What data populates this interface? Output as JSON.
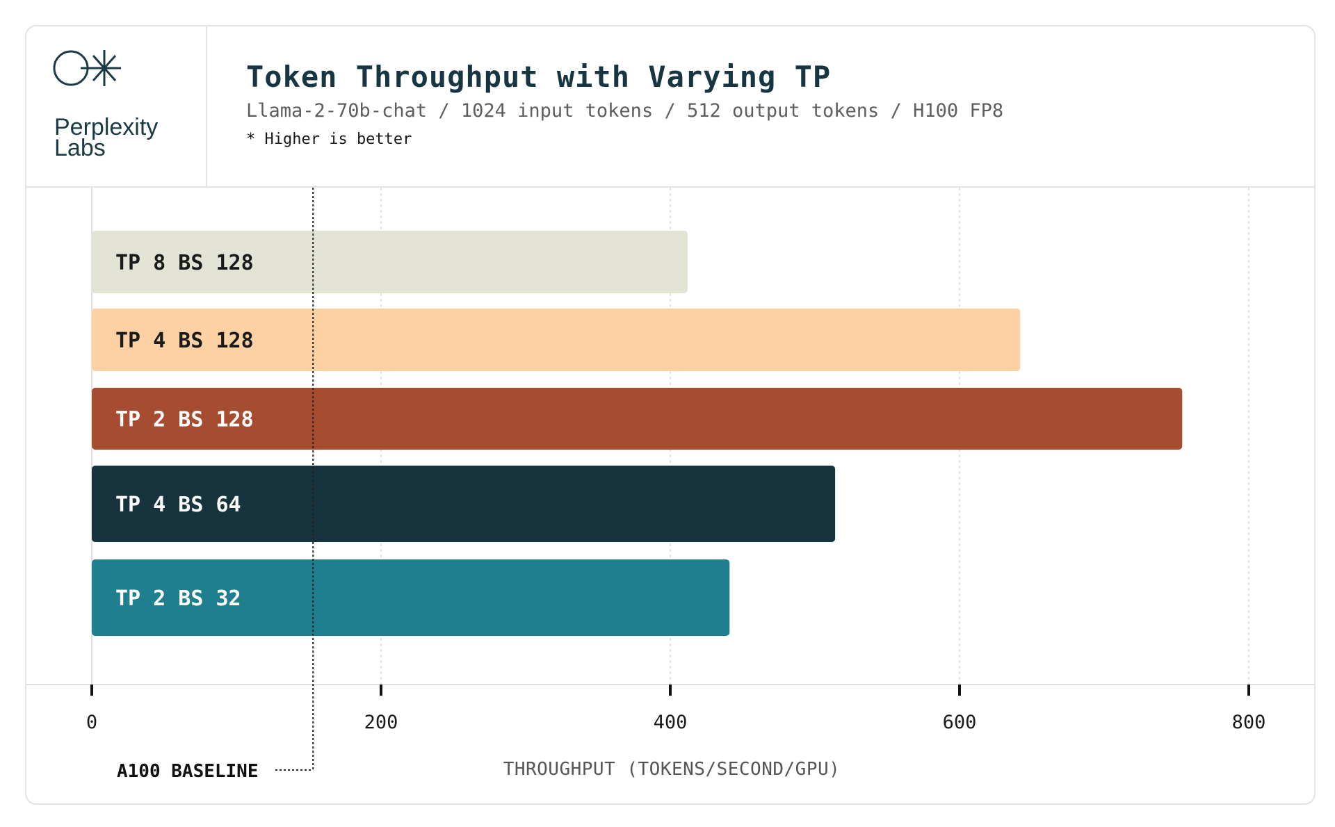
{
  "brand": {
    "logo_icon": "perplexity-logo-icon",
    "name": "Perplexity\nLabs"
  },
  "header": {
    "title": "Token Throughput with Varying TP",
    "subtitle": "Llama-2-70b-chat / 1024 input tokens / 512 output tokens / H100 FP8",
    "note": "* Higher is better"
  },
  "chart_data": {
    "type": "bar",
    "orientation": "horizontal",
    "categories": [
      "TP 8 BS 128",
      "TP 4 BS 128",
      "TP 2 BS 128",
      "TP 4 BS 64",
      "TP 2 BS 32"
    ],
    "values": [
      412,
      642,
      754,
      514,
      441
    ],
    "colors": [
      "#e4e4d6",
      "#fed1a5",
      "#a64d31",
      "#17333e",
      "#1f7f8f"
    ],
    "label_colors": [
      "#1a1a1a",
      "#1a1a1a",
      "#ffffff",
      "#ffffff",
      "#ffffff"
    ],
    "title": "Token Throughput with Varying TP",
    "xlabel": "THROUGHPUT (TOKENS/SECOND/GPU)",
    "ylabel": "",
    "xlim": [
      0,
      800
    ],
    "xticks": [
      0,
      200,
      400,
      600,
      800
    ],
    "grid": true,
    "reference_line": {
      "label": "A100 BASELINE",
      "value": 153
    }
  }
}
